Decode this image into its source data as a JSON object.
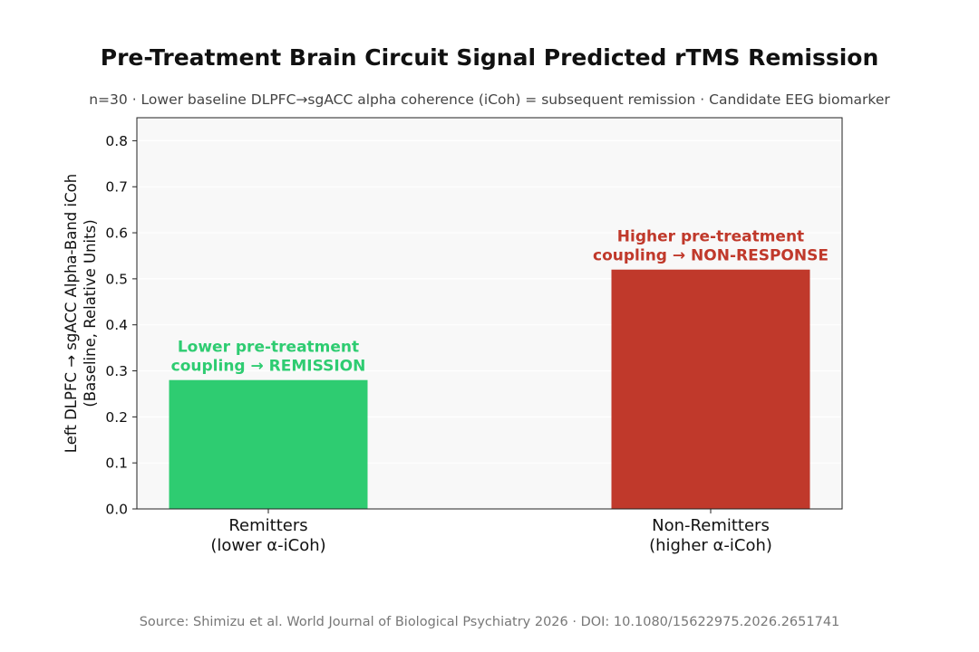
{
  "chart_data": {
    "type": "bar",
    "title": "Pre-Treatment Brain Circuit Signal Predicted rTMS Remission",
    "subtitle": "n=30 · Lower baseline DLPFC→sgACC alpha coherence (iCoh) = subsequent remission · Candidate EEG biomarker",
    "xlabel": "",
    "ylabel_lines": [
      "Left DLPFC → sgACC Alpha-Band iCoh",
      "(Baseline, Relative Units)"
    ],
    "categories": [
      [
        "Remitters",
        "(lower α-iCoh)"
      ],
      [
        "Non-Remitters",
        "(higher α-iCoh)"
      ]
    ],
    "values": [
      0.28,
      0.52
    ],
    "bar_colors": [
      "#2ecc71",
      "#c0392b"
    ],
    "annotations": [
      [
        "Lower pre-treatment",
        "coupling → REMISSION"
      ],
      [
        "Higher pre-treatment",
        "coupling → NON-RESPONSE"
      ]
    ],
    "ylim": [
      0,
      0.85
    ],
    "yticks": [
      "0.0",
      "0.1",
      "0.2",
      "0.3",
      "0.4",
      "0.5",
      "0.6",
      "0.7",
      "0.8"
    ],
    "grid": true,
    "plot_background": "#f8f8f8",
    "source": "Source: Shimizu et al. World Journal of Biological Psychiatry 2026 · DOI: 10.1080/15622975.2026.2651741"
  }
}
